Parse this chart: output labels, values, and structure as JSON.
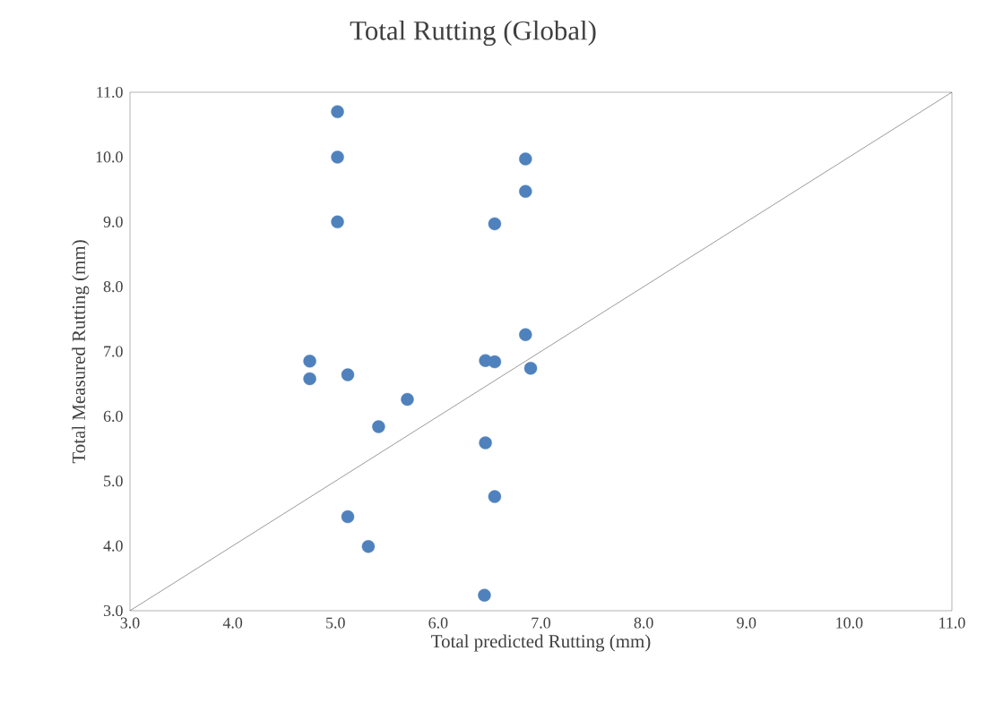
{
  "chart_data": {
    "type": "scatter",
    "title": "Total Rutting (Global)",
    "xlabel": "Total predicted Rutting (mm)",
    "ylabel": "Total Measured Rutting (mm)",
    "xlim": [
      3,
      11
    ],
    "ylim": [
      3,
      11
    ],
    "xticks": [
      {
        "value": 3,
        "label": "3.0"
      },
      {
        "value": 4,
        "label": "4.0"
      },
      {
        "value": 5,
        "label": "5.0"
      },
      {
        "value": 6,
        "label": "6.0"
      },
      {
        "value": 7,
        "label": "7.0"
      },
      {
        "value": 8,
        "label": "8.0"
      },
      {
        "value": 9,
        "label": "9.0"
      },
      {
        "value": 10,
        "label": "10.0"
      },
      {
        "value": 11,
        "label": "11.0"
      }
    ],
    "yticks": [
      {
        "value": 3,
        "label": "3.0"
      },
      {
        "value": 4,
        "label": "4.0"
      },
      {
        "value": 5,
        "label": "5.0"
      },
      {
        "value": 6,
        "label": "6.0"
      },
      {
        "value": 7,
        "label": "7.0"
      },
      {
        "value": 8,
        "label": "8.0"
      },
      {
        "value": 9,
        "label": "9.0"
      },
      {
        "value": 10,
        "label": "10.0"
      },
      {
        "value": 11,
        "label": "11.0"
      }
    ],
    "grid": false,
    "series": [
      {
        "color": "#4f81bd",
        "marker": "circle",
        "x": [
          5.02,
          5.02,
          5.02,
          6.85,
          6.85,
          6.55,
          6.85,
          4.75,
          4.75,
          5.12,
          6.46,
          6.55,
          6.9,
          5.7,
          5.42,
          6.46,
          6.55,
          5.12,
          5.32,
          6.45
        ],
        "values": [
          10.7,
          10.0,
          9.0,
          9.97,
          9.47,
          8.97,
          7.26,
          6.85,
          6.58,
          6.64,
          6.86,
          6.84,
          6.74,
          6.26,
          5.84,
          5.59,
          4.76,
          4.45,
          3.99,
          3.24
        ]
      },
      {
        "type": "line",
        "color": "#000000",
        "marker": "none",
        "line_style": "solid",
        "x": [
          3,
          11
        ],
        "values": [
          3,
          11
        ]
      }
    ]
  }
}
